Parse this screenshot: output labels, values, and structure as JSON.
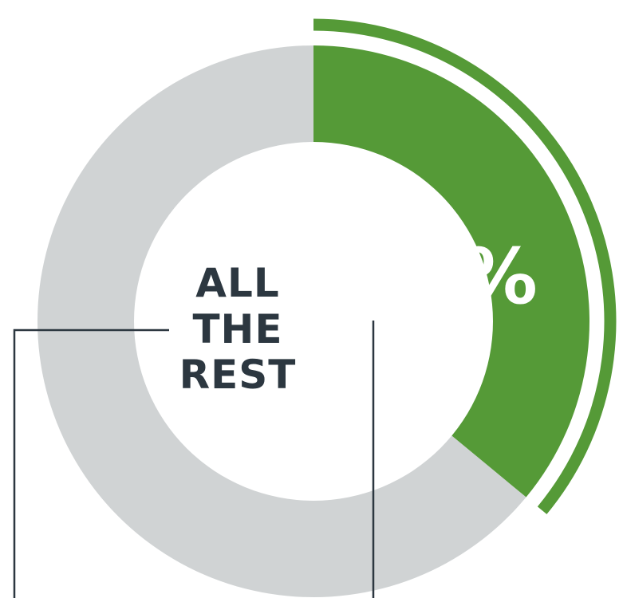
{
  "chart_data": {
    "type": "pie",
    "slices": [
      {
        "label": "36%",
        "value": 36,
        "color": "#559a37"
      },
      {
        "label": "ALL THE REST",
        "value": 64,
        "color": "#d0d3d4"
      }
    ],
    "highlight_label": "36%",
    "rest_label_lines": [
      "ALL",
      "THE",
      "REST"
    ],
    "colors": {
      "highlight": "#559a37",
      "rest": "#d0d3d4",
      "center_text": "#2c3740",
      "leader_line": "#2c3740"
    }
  }
}
